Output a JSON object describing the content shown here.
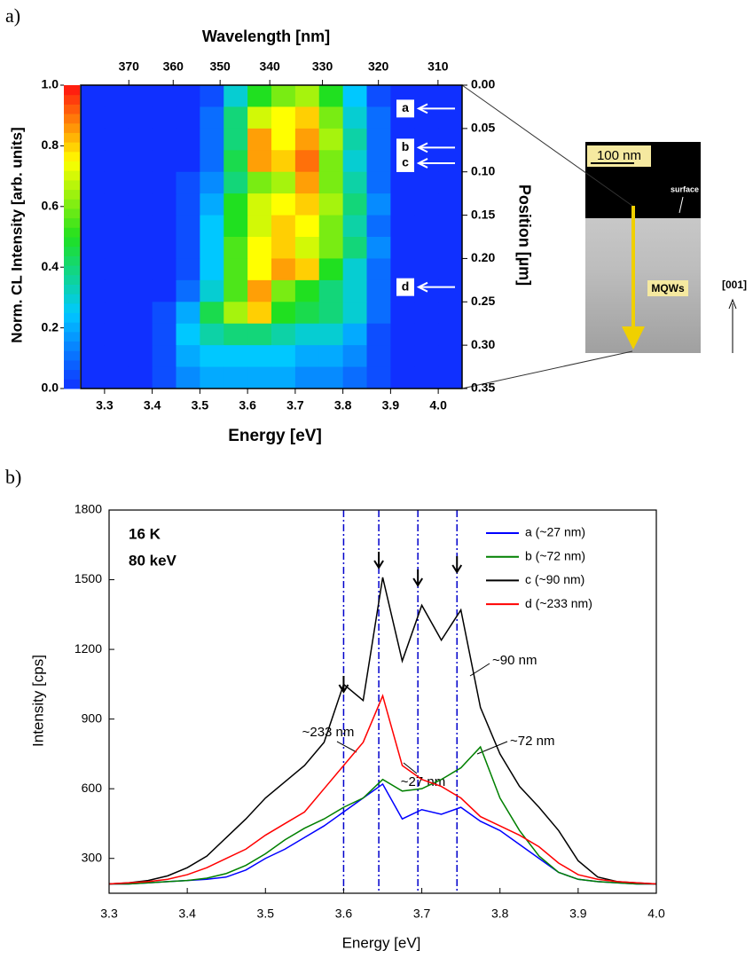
{
  "chart_data": [
    {
      "type": "heatmap",
      "panel": "a)",
      "x2label": "Wavelength [nm]",
      "xlabel": "Energy [eV]",
      "ylabel": "Position [µm]",
      "colorbar_label": "Norm. CL Intensity [arb. units]",
      "xlim": [
        3.25,
        4.05
      ],
      "xticks": [
        3.3,
        3.4,
        3.5,
        3.6,
        3.7,
        3.8,
        3.9,
        {
          "value": 4,
          "label": "4.0"
        }
      ],
      "x2ticks": [
        370,
        360,
        350,
        340,
        330,
        320,
        310
      ],
      "ylim": [
        0,
        0.35
      ],
      "yticks": [
        {
          "value": 0,
          "label": "0.00"
        },
        {
          "value": 0.05,
          "label": "0.05"
        },
        {
          "value": 0.1,
          "label": "0.10"
        },
        {
          "value": 0.15,
          "label": "0.15"
        },
        {
          "value": 0.2,
          "label": "0.20"
        },
        {
          "value": 0.25,
          "label": "0.25"
        },
        {
          "value": 0.3,
          "label": "0.30"
        },
        {
          "value": 0.35,
          "label": "0.35"
        }
      ],
      "clim": [
        0,
        1
      ],
      "cticks": [
        {
          "value": 0,
          "label": "0.0"
        },
        0.2,
        0.4,
        0.6,
        0.8,
        {
          "value": 1,
          "label": "1.0"
        }
      ],
      "colormap": [
        "#1030ff",
        "#00c8ff",
        "#20e020",
        "#ffff00",
        "#ff1010"
      ],
      "x": [
        3.275,
        3.325,
        3.375,
        3.425,
        3.475,
        3.525,
        3.575,
        3.625,
        3.675,
        3.725,
        3.775,
        3.825,
        3.875,
        3.925,
        3.975,
        4.025
      ],
      "y": [
        0.0125,
        0.0375,
        0.0625,
        0.0875,
        0.1125,
        0.1375,
        0.1625,
        0.1875,
        0.2125,
        0.2375,
        0.2625,
        0.2875,
        0.3125,
        0.3375
      ],
      "z": [
        [
          0,
          0,
          0,
          0,
          0,
          0.05,
          0.3,
          0.5,
          0.6,
          0.65,
          0.5,
          0.25,
          0.05,
          0,
          0,
          0
        ],
        [
          0,
          0,
          0,
          0,
          0,
          0.1,
          0.4,
          0.7,
          0.75,
          0.8,
          0.6,
          0.3,
          0.1,
          0,
          0,
          0
        ],
        [
          0,
          0,
          0,
          0,
          0,
          0.1,
          0.4,
          0.85,
          0.75,
          0.85,
          0.65,
          0.35,
          0.1,
          0,
          0,
          0
        ],
        [
          0,
          0,
          0,
          0,
          0,
          0.1,
          0.45,
          0.85,
          0.8,
          0.9,
          0.6,
          0.3,
          0.1,
          0,
          0,
          0
        ],
        [
          0,
          0,
          0,
          0,
          0.05,
          0.15,
          0.4,
          0.6,
          0.65,
          0.85,
          0.6,
          0.35,
          0.1,
          0,
          0,
          0
        ],
        [
          0,
          0,
          0,
          0,
          0.05,
          0.2,
          0.5,
          0.7,
          0.75,
          0.8,
          0.65,
          0.4,
          0.15,
          0,
          0,
          0
        ],
        [
          0,
          0,
          0,
          0,
          0.05,
          0.25,
          0.5,
          0.7,
          0.8,
          0.75,
          0.6,
          0.35,
          0.1,
          0,
          0,
          0
        ],
        [
          0,
          0,
          0,
          0,
          0.05,
          0.25,
          0.55,
          0.75,
          0.8,
          0.7,
          0.6,
          0.4,
          0.15,
          0,
          0,
          0
        ],
        [
          0,
          0,
          0,
          0,
          0.05,
          0.25,
          0.55,
          0.75,
          0.85,
          0.8,
          0.5,
          0.3,
          0.1,
          0,
          0,
          0
        ],
        [
          0,
          0,
          0,
          0,
          0.1,
          0.3,
          0.55,
          0.85,
          0.6,
          0.5,
          0.4,
          0.3,
          0.1,
          0,
          0,
          0
        ],
        [
          0,
          0,
          0,
          0.05,
          0.2,
          0.45,
          0.65,
          0.8,
          0.5,
          0.45,
          0.4,
          0.3,
          0.1,
          0,
          0,
          0
        ],
        [
          0,
          0,
          0,
          0.05,
          0.25,
          0.35,
          0.4,
          0.4,
          0.35,
          0.3,
          0.3,
          0.2,
          0.05,
          0,
          0,
          0
        ],
        [
          0,
          0,
          0,
          0.05,
          0.2,
          0.25,
          0.25,
          0.25,
          0.25,
          0.2,
          0.2,
          0.15,
          0.05,
          0,
          0,
          0
        ],
        [
          0,
          0,
          0,
          0.05,
          0.15,
          0.2,
          0.2,
          0.2,
          0.2,
          0.15,
          0.15,
          0.1,
          0.05,
          0,
          0,
          0
        ]
      ],
      "markers": [
        {
          "label": "a",
          "position": 0.027
        },
        {
          "label": "b",
          "position": 0.072
        },
        {
          "label": "c",
          "position": 0.09
        },
        {
          "label": "d",
          "position": 0.233
        }
      ],
      "inset": {
        "scale_bar": "100 nm",
        "surface": "surface",
        "layer": "MQWs",
        "direction": "[001]"
      }
    },
    {
      "type": "line",
      "panel": "b)",
      "xlabel": "Energy [eV]",
      "ylabel": "Intensity [cps]",
      "annotations": [
        "16 K",
        "80 keV",
        "~90 nm",
        "~72 nm",
        "~233 nm",
        "~27 nm"
      ],
      "xlim": [
        3.3,
        4
      ],
      "xticks": [
        3.3,
        3.4,
        3.5,
        3.6,
        3.7,
        3.8,
        3.9,
        {
          "value": 4,
          "label": "4.0"
        }
      ],
      "ylim": [
        150,
        1800
      ],
      "yticks": [
        300,
        600,
        900,
        1200,
        1500,
        1800
      ],
      "vlines": [
        3.6,
        3.645,
        3.695,
        3.745
      ],
      "x": [
        3.3,
        3.325,
        3.35,
        3.375,
        3.4,
        3.425,
        3.45,
        3.475,
        3.5,
        3.525,
        3.55,
        3.575,
        3.6,
        3.625,
        3.65,
        3.675,
        3.7,
        3.725,
        3.75,
        3.775,
        3.8,
        3.825,
        3.85,
        3.875,
        3.9,
        3.925,
        3.95,
        3.975,
        4
      ],
      "series": [
        {
          "name": "a (~27 nm)",
          "color": "#0000ff",
          "values": [
            190,
            190,
            195,
            200,
            205,
            210,
            220,
            250,
            300,
            340,
            390,
            440,
            500,
            560,
            620,
            470,
            510,
            490,
            520,
            460,
            420,
            360,
            300,
            240,
            210,
            200,
            195,
            190,
            190
          ]
        },
        {
          "name": "b (~72 nm)",
          "color": "#008000",
          "values": [
            190,
            190,
            195,
            200,
            205,
            215,
            235,
            270,
            320,
            380,
            430,
            470,
            520,
            560,
            640,
            590,
            600,
            640,
            690,
            780,
            560,
            420,
            310,
            240,
            210,
            200,
            195,
            190,
            190
          ]
        },
        {
          "name": "c (~90 nm)",
          "color": "#000000",
          "values": [
            190,
            195,
            205,
            225,
            260,
            310,
            390,
            470,
            560,
            630,
            700,
            800,
            1050,
            980,
            1510,
            1150,
            1390,
            1240,
            1370,
            950,
            750,
            610,
            520,
            420,
            290,
            220,
            200,
            195,
            190
          ]
        },
        {
          "name": "d (~233 nm)",
          "color": "#ff0000",
          "values": [
            190,
            195,
            200,
            210,
            230,
            260,
            300,
            340,
            400,
            450,
            500,
            600,
            700,
            800,
            1000,
            700,
            640,
            610,
            560,
            480,
            440,
            400,
            350,
            280,
            230,
            210,
            200,
            195,
            190
          ]
        }
      ]
    }
  ]
}
